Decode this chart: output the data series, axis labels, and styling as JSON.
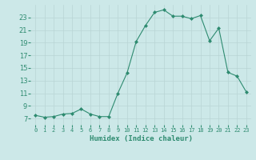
{
  "x": [
    0,
    1,
    2,
    3,
    4,
    5,
    6,
    7,
    8,
    9,
    10,
    11,
    12,
    13,
    14,
    15,
    16,
    17,
    18,
    19,
    20,
    21,
    22,
    23
  ],
  "y": [
    7.5,
    7.2,
    7.3,
    7.7,
    7.8,
    8.5,
    7.7,
    7.3,
    7.3,
    11.0,
    14.2,
    19.2,
    21.7,
    23.8,
    24.2,
    23.2,
    23.2,
    22.8,
    23.3,
    19.3,
    21.3,
    14.3,
    13.7,
    11.2
  ],
  "xlabel": "Humidex (Indice chaleur)",
  "xlim": [
    -0.5,
    23.5
  ],
  "ylim": [
    6,
    25
  ],
  "yticks": [
    7,
    9,
    11,
    13,
    15,
    17,
    19,
    21,
    23
  ],
  "xticks": [
    0,
    1,
    2,
    3,
    4,
    5,
    6,
    7,
    8,
    9,
    10,
    11,
    12,
    13,
    14,
    15,
    16,
    17,
    18,
    19,
    20,
    21,
    22,
    23
  ],
  "xtick_labels": [
    "0",
    "1",
    "2",
    "3",
    "4",
    "5",
    "6",
    "7",
    "8",
    "9",
    "10",
    "11",
    "12",
    "13",
    "14",
    "15",
    "16",
    "17",
    "18",
    "19",
    "20",
    "21",
    "22",
    "23"
  ],
  "line_color": "#2e8b70",
  "marker": "D",
  "marker_size": 2.0,
  "background_color": "#cce8e8",
  "grid_color": "#b8d4d4"
}
